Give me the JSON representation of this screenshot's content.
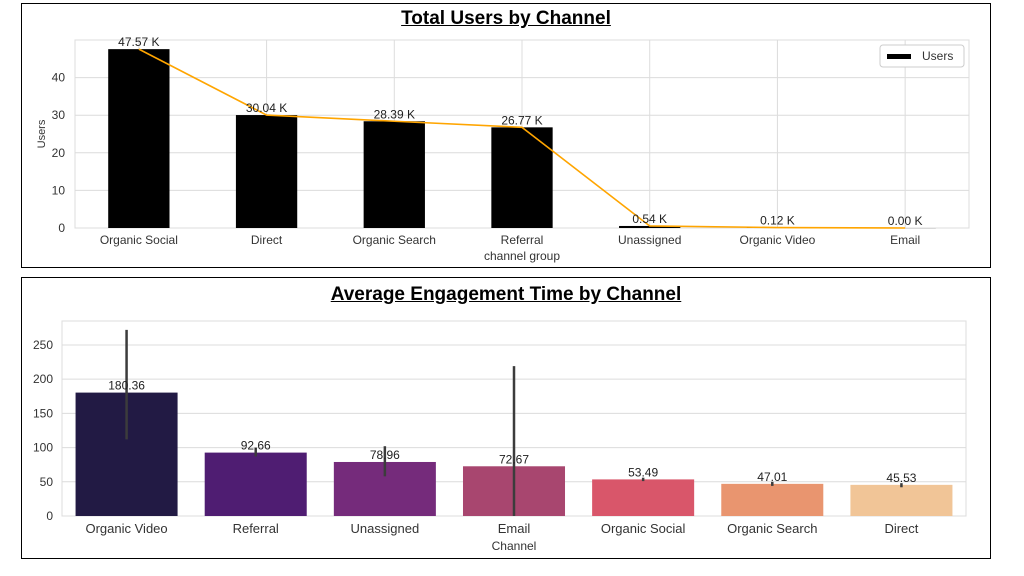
{
  "chart_data": [
    {
      "type": "bar",
      "title": "Total Users by Channel",
      "xlabel": "channel group",
      "ylabel": "Users",
      "categories": [
        "Organic Social",
        "Direct",
        "Organic Search",
        "Referral",
        "Unassigned",
        "Organic Video",
        "Email"
      ],
      "values": [
        47.57,
        30.04,
        28.39,
        26.77,
        0.54,
        0.12,
        0.0
      ],
      "data_labels": [
        "47.57 K",
        "30.04 K",
        "28.39 K",
        "26.77 K",
        "0.54 K",
        "0.12 K",
        "0.00 K"
      ],
      "yticks": [
        0,
        10,
        20,
        30,
        40
      ],
      "ylim": [
        0,
        50
      ],
      "grid": true,
      "legend": {
        "position": "top-right",
        "entries": [
          "Users"
        ]
      },
      "bar_color": "#000000",
      "line_color": "#FFA500"
    },
    {
      "type": "bar",
      "title": "Average Engagement Time by Channel",
      "xlabel": "Channel",
      "ylabel": "",
      "categories": [
        "Organic Video",
        "Referral",
        "Unassigned",
        "Email",
        "Organic Social",
        "Organic Search",
        "Direct"
      ],
      "values": [
        180.36,
        92.66,
        78.96,
        72.67,
        53.49,
        47.01,
        45.53
      ],
      "data_labels": [
        "180.36",
        "92.66",
        "78.96",
        "72.67",
        "53.49",
        "47.01",
        "45.53"
      ],
      "error_bars": [
        [
          112,
          272
        ],
        [
          87,
          100
        ],
        [
          58,
          102
        ],
        [
          0,
          219
        ],
        [
          51,
          56
        ],
        [
          44,
          50
        ],
        [
          42,
          48
        ]
      ],
      "colors": [
        "#221A44",
        "#4F1D72",
        "#752B7B",
        "#A8466F",
        "#D9566A",
        "#E9956F",
        "#F1C597"
      ],
      "yticks": [
        0,
        50,
        100,
        150,
        200,
        250
      ],
      "ylim": [
        0,
        285
      ],
      "grid": true
    }
  ]
}
